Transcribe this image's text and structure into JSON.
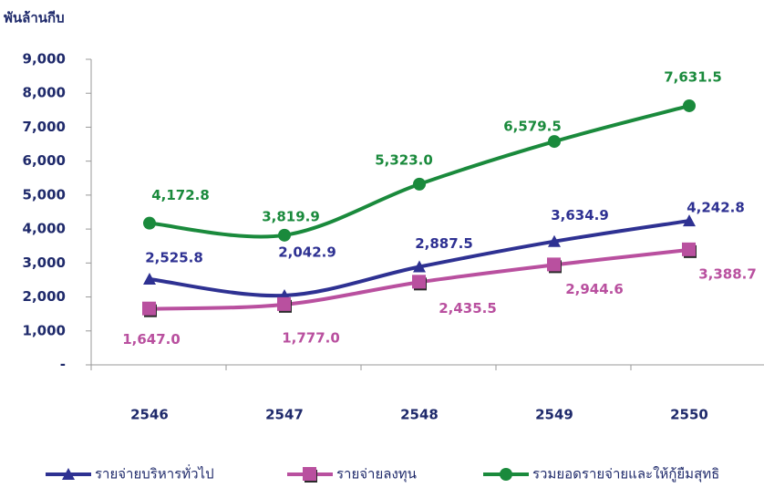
{
  "chart_data": {
    "type": "line",
    "y_label": "พันล้านกีบ",
    "categories": [
      "2546",
      "2547",
      "2548",
      "2549",
      "2550"
    ],
    "ylim": [
      0,
      9000
    ],
    "yticks": [
      {
        "value": 0,
        "label": "-"
      },
      {
        "value": 1000,
        "label": "1,000"
      },
      {
        "value": 2000,
        "label": "2,000"
      },
      {
        "value": 3000,
        "label": "3,000"
      },
      {
        "value": 4000,
        "label": "4,000"
      },
      {
        "value": 5000,
        "label": "5,000"
      },
      {
        "value": 6000,
        "label": "6,000"
      },
      {
        "value": 7000,
        "label": "7,000"
      },
      {
        "value": 8000,
        "label": "8,000"
      },
      {
        "value": 9000,
        "label": "9,000"
      }
    ],
    "grid": false,
    "series": [
      {
        "name": "รายจ่ายบริหารทั่วไป",
        "color": "#2e3192",
        "marker": "triangle",
        "values": [
          2525.8,
          2042.9,
          2887.5,
          3634.9,
          4242.8
        ],
        "value_labels": [
          "2,525.8",
          "2,042.9",
          "2,887.5",
          "3,634.9",
          "4,242.8"
        ]
      },
      {
        "name": "รายจ่ายลงทุน",
        "color": "#b9509f",
        "marker": "square",
        "values": [
          1647.0,
          1777.0,
          2435.5,
          2944.6,
          3388.7
        ],
        "value_labels": [
          "1,647.0",
          "1,777.0",
          "2,435.5",
          "2,944.6",
          "3,388.7"
        ]
      },
      {
        "name": "รวมยอดรายจ่ายและให้กู้ยืมสุทธิ",
        "color": "#1a8a3c",
        "marker": "circle",
        "values": [
          4172.8,
          3819.9,
          5323.0,
          6579.5,
          7631.5
        ],
        "value_labels": [
          "4,172.8",
          "3,819.9",
          "5,323.0",
          "6,579.5",
          "7,631.5"
        ]
      }
    ]
  }
}
